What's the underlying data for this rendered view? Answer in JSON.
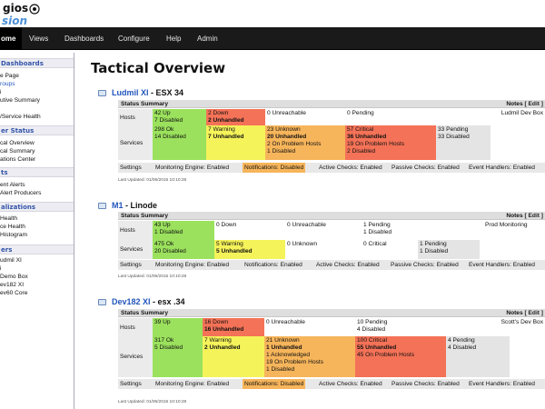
{
  "logo": {
    "line1": "gios",
    "line2": "sion"
  },
  "nav": {
    "items": [
      {
        "label": "ome",
        "active": true
      },
      {
        "label": "Views"
      },
      {
        "label": "Dashboards"
      },
      {
        "label": "Configure"
      },
      {
        "label": "Help"
      },
      {
        "label": "Admin"
      }
    ]
  },
  "sidebar": {
    "sections": [
      {
        "title": "Dashboards",
        "items": [
          "e Page",
          "roups",
          "i",
          "utive Summary",
          "",
          "/Service Health"
        ]
      },
      {
        "title": "er Status",
        "items": [
          "cal Overview",
          "cal Summary",
          "ations Center"
        ]
      },
      {
        "title": "ts",
        "items": [
          "ent Alerts",
          "Alert Producers"
        ]
      },
      {
        "title": "alizations",
        "items": [
          "Health",
          "ce Health",
          "Histogram"
        ]
      },
      {
        "title": "ers",
        "items": [
          "udmil XI",
          "i",
          "Demo Box",
          "ev182 XI",
          "ev60 Core"
        ]
      }
    ]
  },
  "main": {
    "title": "Tactical Overview"
  },
  "panel_labels": {
    "status_summary": "Status Summary",
    "notes": "Notes",
    "edit": "[ Edit ]",
    "hosts": "Hosts",
    "services": "Services",
    "settings": "Settings",
    "engine": "Monitoring Engine: Enabled",
    "notifications_enabled": "Notifications: Enabled",
    "notifications_disabled": "Notifications: Disabled",
    "active": "Active Checks: Enabled",
    "passive": "Passive Checks: Enabled",
    "events": "Event Handlers: Enabled"
  },
  "hosts": [
    {
      "name": "Ludmil XI",
      "desc": " - ESX 34",
      "note": "Ludmil Dev Box",
      "notifications": "Notifications: Disabled",
      "updated": "Last Updated: 01/06/2015 10:10:28",
      "hosts_cells": [
        {
          "l1": "42 Up",
          "l2": "7 Disabled"
        },
        {
          "l1": "2 Down",
          "l2": "2 Unhandled"
        },
        {
          "l1": "0 Unreachable"
        },
        {
          "l1": "0 Pending"
        }
      ],
      "svc_cells": [
        {
          "l1": "298 Ok",
          "l2": "14 Disabled"
        },
        {
          "l1": "7 Warning",
          "l2": "7 Unhandled"
        },
        {
          "l1": "23 Unknown",
          "l2": "20 Unhandled",
          "l3": "2 On Problem Hosts",
          "l4": "1 Disabled"
        },
        {
          "l1": "57 Critical",
          "l2": "36 Unhandled",
          "l3": "19 On Problem Hosts",
          "l4": "2 Disabled"
        },
        {
          "l1": "33 Pending",
          "l2": "33 Disabled"
        }
      ]
    },
    {
      "name": "M1",
      "desc": " - Linode",
      "note": "Prod Monitoring",
      "notifications": "Notifications: Enabled",
      "updated": "Last Updated: 01/06/2015 10:10:28",
      "hosts_cells": [
        {
          "l1": "43 Up",
          "l2": "1 Disabled"
        },
        {
          "l1": "0 Down"
        },
        {
          "l1": "0 Unreachable"
        },
        {
          "l1": "1 Pending",
          "l2": "1 Disabled"
        }
      ],
      "svc_cells": [
        {
          "l1": "475 Ok",
          "l2": "20 Disabled"
        },
        {
          "l1": "5 Warning",
          "l2": "5 Unhandled"
        },
        {
          "l1": "0 Unknown"
        },
        {
          "l1": "0 Critical"
        },
        {
          "l1": "1 Pending",
          "l2": "1 Disabled"
        }
      ]
    },
    {
      "name": "Dev182 XI",
      "desc": " - esx .34",
      "note": "Scott's Dev Box",
      "notifications": "Notifications: Disabled",
      "updated": "Last Updated: 01/06/2015 10:10:28",
      "hosts_cells": [
        {
          "l1": "39 Up"
        },
        {
          "l1": "16 Down",
          "l2": "16 Unhandled"
        },
        {
          "l1": "0 Unreachable"
        },
        {
          "l1": "10 Pending",
          "l2": "4 Disabled"
        }
      ],
      "svc_cells": [
        {
          "l1": "317 Ok",
          "l2": "5 Disabled"
        },
        {
          "l1": "7 Warning",
          "l2": "2 Unhandled"
        },
        {
          "l1": "21 Unknown",
          "l2": "1 Unhandled",
          "l3": "1 Acknowledged",
          "l4": "19 On Problem Hosts",
          "l5": "1 Disabled"
        },
        {
          "l1": "100 Critical",
          "l2": "55 Unhandled",
          "l3": "45 On Problem Hosts"
        },
        {
          "l1": "4 Pending",
          "l2": "4 Disabled"
        }
      ]
    }
  ],
  "colors": {
    "up": "#9be15d",
    "down": "#f47257",
    "warning": "#f5f35a",
    "unknown": "#f7b55b",
    "pending": "#e4e4e4",
    "nav": "#1a1a1a"
  }
}
